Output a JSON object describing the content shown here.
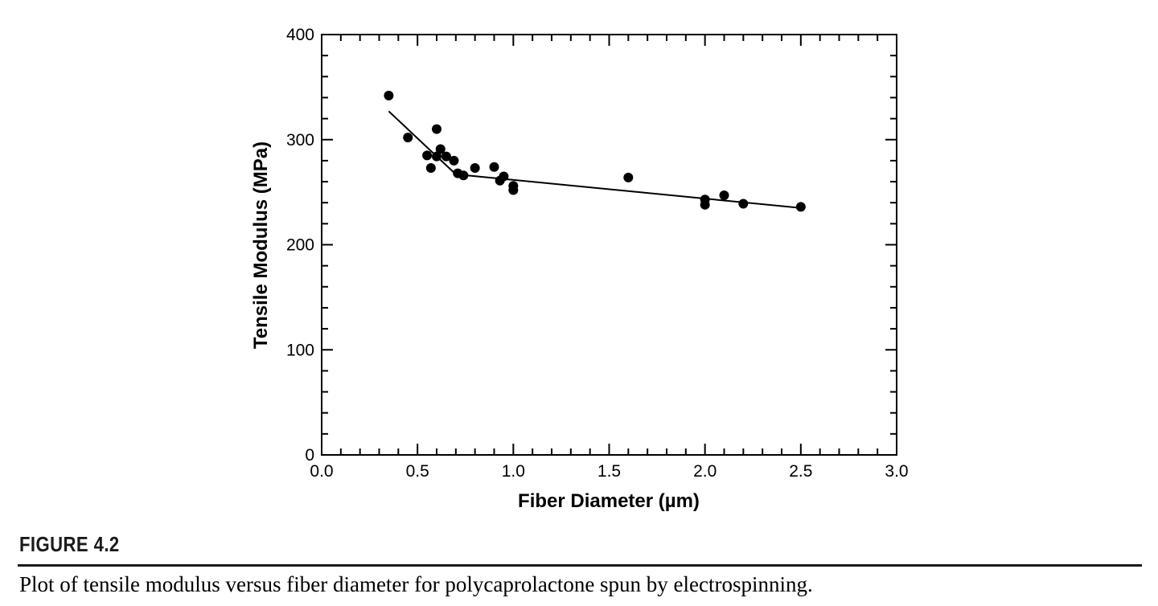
{
  "figure": {
    "label": "FIGURE 4.2",
    "caption": "Plot of tensile modulus versus fiber diameter for polycaprolactone spun by electrospinning."
  },
  "chart_data": {
    "type": "scatter",
    "xlabel": "Fiber Diameter (µm)",
    "ylabel": "Tensile Modulus (MPa)",
    "xlim": [
      0,
      3
    ],
    "ylim": [
      0,
      400
    ],
    "x_ticks": [
      "0.0",
      "0.5",
      "1.0",
      "1.5",
      "2.0",
      "2.5",
      "3.0"
    ],
    "y_ticks": [
      "0",
      "100",
      "200",
      "300",
      "400"
    ],
    "grid": false,
    "legend": "none",
    "points": [
      {
        "x": 0.35,
        "y": 342
      },
      {
        "x": 0.45,
        "y": 302
      },
      {
        "x": 0.55,
        "y": 285
      },
      {
        "x": 0.57,
        "y": 273
      },
      {
        "x": 0.6,
        "y": 310
      },
      {
        "x": 0.6,
        "y": 284
      },
      {
        "x": 0.62,
        "y": 291
      },
      {
        "x": 0.65,
        "y": 284
      },
      {
        "x": 0.69,
        "y": 280
      },
      {
        "x": 0.71,
        "y": 268
      },
      {
        "x": 0.74,
        "y": 266
      },
      {
        "x": 0.8,
        "y": 273
      },
      {
        "x": 0.9,
        "y": 274
      },
      {
        "x": 0.93,
        "y": 261
      },
      {
        "x": 0.95,
        "y": 265
      },
      {
        "x": 1.0,
        "y": 256
      },
      {
        "x": 1.0,
        "y": 252
      },
      {
        "x": 1.6,
        "y": 264
      },
      {
        "x": 2.0,
        "y": 243
      },
      {
        "x": 2.0,
        "y": 238
      },
      {
        "x": 2.1,
        "y": 247
      },
      {
        "x": 2.2,
        "y": 239
      },
      {
        "x": 2.5,
        "y": 236
      }
    ],
    "fit_line": [
      {
        "x": 0.35,
        "y": 327
      },
      {
        "x": 0.7,
        "y": 267
      },
      {
        "x": 2.5,
        "y": 235
      }
    ],
    "marker_color": "#000000",
    "line_color": "#000000"
  }
}
